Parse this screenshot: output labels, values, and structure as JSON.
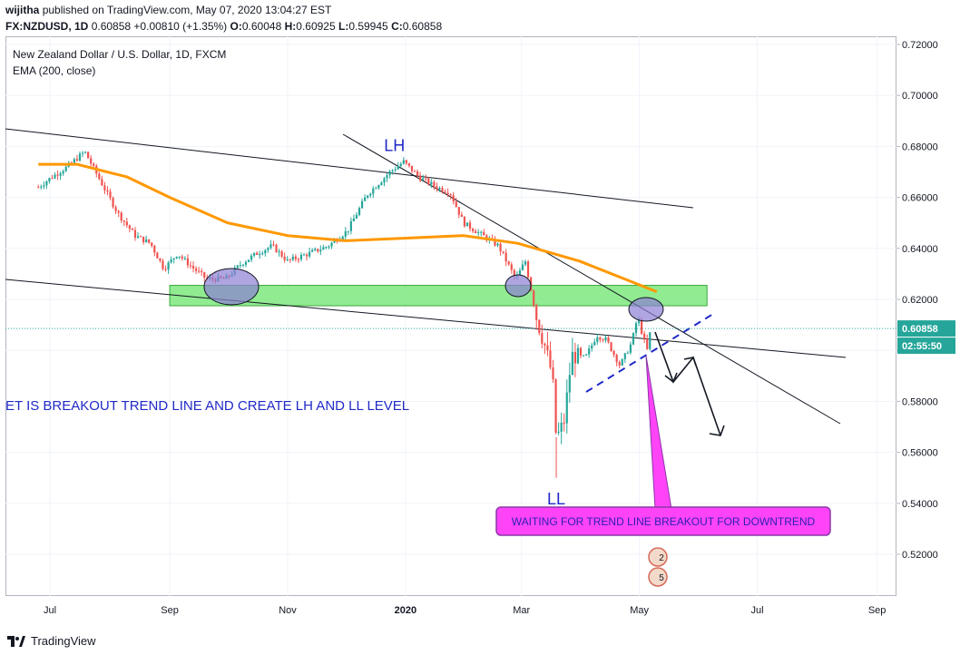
{
  "header": {
    "user": "wijitha",
    "published": "published on TradingView.com, May 07, 2020 13:04:27 EST",
    "symbol": "FX:NZDUSD, 1D",
    "last": "0.60858",
    "change": "+0.00810 (+1.35%)",
    "o_label": "O:",
    "o_value": "0.60048",
    "h_label": "H:",
    "h_value": "0.60925",
    "l_label": "L:",
    "l_value": "0.59945",
    "c_label": "C:",
    "c_value": "0.60858"
  },
  "legend": {
    "title": "New Zealand Dollar / U.S. Dollar, 1D, FXCM",
    "indicator": "EMA (200, close)"
  },
  "footer": {
    "brand": "TradingView"
  },
  "colors": {
    "up": "#26a69a",
    "down": "#ef5350",
    "ema": "#ff9800",
    "zone": "#7ee87e",
    "annotation_blue": "#2029c8",
    "callout": "#ff44f8",
    "price_badge": "#26a69a",
    "ellipse": "#8b7fd4"
  },
  "chart_data": {
    "type": "candlestick",
    "title": "New Zealand Dollar / U.S. Dollar, 1D, FXCM",
    "ylim": [
      0.505,
      0.725
    ],
    "y_ticks": [
      "0.72000",
      "0.70000",
      "0.68000",
      "0.66000",
      "0.64000",
      "0.62000",
      "0.60000",
      "0.58000",
      "0.56000",
      "0.54000",
      "0.52000"
    ],
    "x_ticks": [
      "Jul",
      "Sep",
      "Nov",
      "2020",
      "Mar",
      "May",
      "Jul",
      "Sep"
    ],
    "current_price": "0.60858",
    "countdown": "02:55:50",
    "price_path": [
      [
        "2019-06-25",
        0.664
      ],
      [
        "2019-07-02",
        0.668
      ],
      [
        "2019-07-10",
        0.672
      ],
      [
        "2019-07-19",
        0.678
      ],
      [
        "2019-07-26",
        0.668
      ],
      [
        "2019-08-05",
        0.654
      ],
      [
        "2019-08-14",
        0.645
      ],
      [
        "2019-08-22",
        0.642
      ],
      [
        "2019-08-29",
        0.632
      ],
      [
        "2019-09-05",
        0.638
      ],
      [
        "2019-09-12",
        0.633
      ],
      [
        "2019-09-20",
        0.628
      ],
      [
        "2019-09-30",
        0.628
      ],
      [
        "2019-10-08",
        0.634
      ],
      [
        "2019-10-16",
        0.638
      ],
      [
        "2019-10-24",
        0.641
      ],
      [
        "2019-11-01",
        0.635
      ],
      [
        "2019-11-12",
        0.638
      ],
      [
        "2019-11-22",
        0.641
      ],
      [
        "2019-12-02",
        0.647
      ],
      [
        "2019-12-12",
        0.661
      ],
      [
        "2019-12-24",
        0.67
      ],
      [
        "2019-12-31",
        0.674
      ],
      [
        "2020-01-08",
        0.668
      ],
      [
        "2020-01-17",
        0.664
      ],
      [
        "2020-01-24",
        0.662
      ],
      [
        "2020-01-31",
        0.65
      ],
      [
        "2020-02-10",
        0.645
      ],
      [
        "2020-02-18",
        0.641
      ],
      [
        "2020-02-27",
        0.628
      ],
      [
        "2020-03-03",
        0.635
      ],
      [
        "2020-03-09",
        0.612
      ],
      [
        "2020-03-13",
        0.602
      ],
      [
        "2020-03-17",
        0.59
      ],
      [
        "2020-03-19",
        0.565
      ],
      [
        "2020-03-23",
        0.572
      ],
      [
        "2020-03-27",
        0.598
      ],
      [
        "2020-04-03",
        0.597
      ],
      [
        "2020-04-09",
        0.606
      ],
      [
        "2020-04-14",
        0.604
      ],
      [
        "2020-04-21",
        0.594
      ],
      [
        "2020-04-27",
        0.603
      ],
      [
        "2020-04-30",
        0.613
      ],
      [
        "2020-05-05",
        0.6
      ],
      [
        "2020-05-07",
        0.609
      ]
    ],
    "ema200": [
      [
        "2019-06-25",
        0.673
      ],
      [
        "2019-07-15",
        0.673
      ],
      [
        "2019-08-10",
        0.668
      ],
      [
        "2019-09-01",
        0.66
      ],
      [
        "2019-10-01",
        0.65
      ],
      [
        "2019-11-01",
        0.645
      ],
      [
        "2019-12-01",
        0.643
      ],
      [
        "2019-12-31",
        0.644
      ],
      [
        "2020-01-31",
        0.645
      ],
      [
        "2020-02-28",
        0.642
      ],
      [
        "2020-03-31",
        0.635
      ],
      [
        "2020-04-30",
        0.626
      ],
      [
        "2020-05-10",
        0.623
      ]
    ],
    "annotations": {
      "resistance_zone": {
        "from": "2019-09-01",
        "to": "2020-06-05",
        "low": 0.6175,
        "high": 0.6255
      },
      "LH": {
        "date": "2019-12-31",
        "price": 0.68,
        "text": "LH"
      },
      "LL": {
        "date": "2020-03-19",
        "price": 0.541,
        "text": "LL"
      },
      "note": "ET IS BREAKOUT TREND LINE AND CREATE LH AND LL LEVEL",
      "callout": "WAITING FOR TREND LINE BREAKOUT FOR DOWNTREND",
      "event_badges": [
        "2",
        "5"
      ]
    }
  }
}
